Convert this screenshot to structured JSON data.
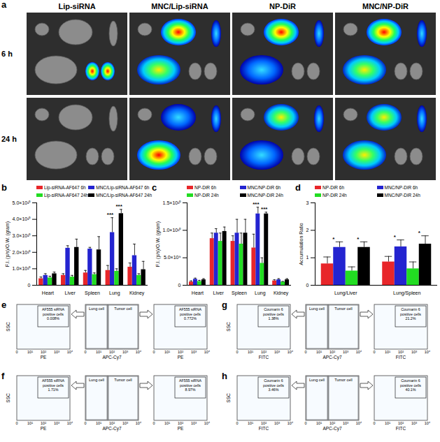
{
  "chart_data": [
    {
      "panel": "a",
      "type": "image_grid",
      "columns": [
        "Lip-siRNA",
        "MNC/Lip-siRNA",
        "NP-DiR",
        "MNC/NP-DiR"
      ],
      "rows": [
        "6 h",
        "24 h"
      ]
    },
    {
      "panel": "b",
      "type": "bar",
      "y_label": "F.I. (p/s)/O.W. (gram)",
      "legend": "top-left",
      "categories": [
        "Heart",
        "Liver",
        "Spleen",
        "Lung",
        "Kidney"
      ],
      "ylim": [
        0,
        50000000000.0
      ],
      "yticks": [
        0,
        {
          "value": 10000000000.0,
          "label": "1.0×10¹⁰"
        },
        {
          "value": 20000000000.0,
          "label": "2.0×10¹⁰"
        },
        {
          "value": 30000000000.0,
          "label": "3.0×10¹⁰"
        },
        {
          "value": 40000000000.0,
          "label": "4.0×10¹⁰"
        },
        {
          "value": 50000000000.0,
          "label": "5.0×10¹⁰"
        }
      ],
      "series": [
        {
          "name": "Lip-siRNA-AF647 6h",
          "color": "#e8262a",
          "values": [
            4000000000.0,
            6000000000.0,
            7500000000.0,
            9000000000.0,
            11000000000.0
          ],
          "errors": [
            1000000000.0,
            1000000000.0,
            1500000000.0,
            3000000000.0,
            2500000000.0
          ]
        },
        {
          "name": "MNC/Lip-siRNA-AF647 6h",
          "color": "#2424d0",
          "values": [
            6000000000.0,
            22500000000.0,
            22000000000.0,
            32000000000.0,
            18000000000.0
          ],
          "errors": [
            1000000000.0,
            1500000000.0,
            1000000000.0,
            9000000000.0,
            7000000000.0
          ]
        },
        {
          "name": "Lip-siRNA-AF647 24h",
          "color": "#22dd22",
          "values": [
            4500000000.0,
            5000000000.0,
            6500000000.0,
            8500000000.0,
            6000000000.0
          ],
          "errors": [
            1000000000.0,
            1000000000.0,
            1000000000.0,
            1500000000.0,
            1000000000.0
          ]
        },
        {
          "name": "MNC/Lip-siRNA-AF647 24h",
          "color": "#000000",
          "values": [
            7000000000.0,
            23000000000.0,
            21500000000.0,
            43500000000.0,
            9500000000.0
          ],
          "errors": [
            1000000000.0,
            5000000000.0,
            8000000000.0,
            2500000000.0,
            5000000000.0
          ]
        }
      ],
      "annotations": [
        {
          "text": "***",
          "category": "Lung",
          "between": [
            "Lip-siRNA-AF647 6h",
            "MNC/Lip-siRNA-AF647 6h"
          ]
        },
        {
          "text": "***",
          "category": "Lung",
          "between": [
            "Lip-siRNA-AF647 24h",
            "MNC/Lip-siRNA-AF647 24h"
          ]
        }
      ]
    },
    {
      "panel": "c",
      "type": "bar",
      "y_label": "F.I. (p/s)/O.W. (gram)",
      "legend": "top-left",
      "categories": [
        "Heart",
        "Liver",
        "Spleen",
        "Lung",
        "Kidney"
      ],
      "ylim": [
        0,
        15000000000.0
      ],
      "yticks": [
        0,
        {
          "value": 5000000000.0,
          "label": "5.0×10⁹"
        },
        {
          "value": 10000000000.0,
          "label": "1.0×10¹⁰"
        },
        {
          "value": 15000000000.0,
          "label": "1.5×10¹⁰"
        }
      ],
      "series": [
        {
          "name": "NP-DiR 6h",
          "color": "#e8262a",
          "values": [
            600000000.0,
            8500000000.0,
            8000000000.0,
            6800000000.0,
            800000000.0
          ],
          "errors": [
            200000000.0,
            1000000000.0,
            1000000000.0,
            2500000000.0,
            200000000.0
          ]
        },
        {
          "name": "MNC/NP-DiR 6h",
          "color": "#2424d0",
          "values": [
            1100000000.0,
            9500000000.0,
            9500000000.0,
            13000000000.0,
            1000000000.0
          ],
          "errors": [
            200000000.0,
            800000000.0,
            2500000000.0,
            1200000000.0,
            200000000.0
          ]
        },
        {
          "name": "NP-DiR 24h",
          "color": "#22dd22",
          "values": [
            700000000.0,
            8000000000.0,
            7500000000.0,
            4000000000.0,
            600000000.0
          ],
          "errors": [
            200000000.0,
            1500000000.0,
            2000000000.0,
            1000000000.0,
            100000000.0
          ]
        },
        {
          "name": "MNC/NP-DiR 24h",
          "color": "#000000",
          "values": [
            1000000000.0,
            9800000000.0,
            9500000000.0,
            13000000000.0,
            1000000000.0
          ],
          "errors": [
            200000000.0,
            800000000.0,
            2500000000.0,
            300000000.0,
            200000000.0
          ]
        }
      ],
      "annotations": [
        {
          "text": "***",
          "category": "Lung",
          "between": [
            "NP-DiR 6h",
            "MNC/NP-DiR 6h"
          ]
        },
        {
          "text": "***",
          "category": "Lung",
          "between": [
            "NP-DiR 24h",
            "MNC/NP-DiR 24h"
          ]
        }
      ]
    },
    {
      "panel": "d",
      "type": "bar",
      "y_label": "Accumulation Ratio",
      "legend": "top-left",
      "categories": [
        "Lung/Liver",
        "Lung/Spleen"
      ],
      "ylim": [
        0,
        3
      ],
      "yticks": [
        0,
        1,
        2,
        3
      ],
      "series": [
        {
          "name": "NP-DiR 6h",
          "color": "#e8262a",
          "values": [
            0.78,
            0.85
          ],
          "errors": [
            0.25,
            0.2
          ]
        },
        {
          "name": "MNC/NP-DiR 6h",
          "color": "#2424d0",
          "values": [
            1.38,
            1.4
          ],
          "errors": [
            0.2,
            0.25
          ]
        },
        {
          "name": "NP-DiR 24h",
          "color": "#22dd22",
          "values": [
            0.52,
            0.6
          ],
          "errors": [
            0.15,
            0.25
          ]
        },
        {
          "name": "MNC/NP-DiR 24h",
          "color": "#000000",
          "values": [
            1.38,
            1.5
          ],
          "errors": [
            0.2,
            0.3
          ]
        }
      ],
      "annotations": [
        {
          "text": "*",
          "category": "Lung/Liver",
          "between": [
            "NP-DiR 6h",
            "MNC/NP-DiR 6h"
          ]
        },
        {
          "text": "*",
          "category": "Lung/Liver",
          "between": [
            "NP-DiR 24h",
            "MNC/NP-DiR 24h"
          ]
        },
        {
          "text": "*",
          "category": "Lung/Spleen",
          "between": [
            "NP-DiR 6h",
            "MNC/NP-DiR 6h"
          ]
        },
        {
          "text": "*",
          "category": "Lung/Spleen",
          "between": [
            "NP-DiR 24h",
            "MNC/NP-DiR 24h"
          ]
        }
      ]
    },
    {
      "panel": "e",
      "type": "flow_cytometry",
      "y_label": "SSC",
      "tick_texts": [
        "0",
        "10¹",
        "10²",
        "10³",
        "10⁴"
      ],
      "plots": [
        {
          "x_label": "PE",
          "gate_label": "AF555 siRNA positive cells",
          "percent_label": "0.008%"
        },
        {
          "x_label": "APC-Cy7",
          "gates": [
            "Lung cell",
            "Tumor cell"
          ]
        },
        {
          "x_label": "PE",
          "gate_label": "AF555 siRNA positive cells",
          "percent_label": "0.772%"
        }
      ]
    },
    {
      "panel": "f",
      "type": "flow_cytometry",
      "y_label": "SSC",
      "tick_texts": [
        "0",
        "10¹",
        "10²",
        "10³",
        "10⁴"
      ],
      "plots": [
        {
          "x_label": "PE",
          "gate_label": "AF555 siRNA positive cells",
          "percent_label": "1.71%"
        },
        {
          "x_label": "APC-Cy7",
          "gates": [
            "Lung cell",
            "Tumor cell"
          ]
        },
        {
          "x_label": "PE",
          "gate_label": "AF555 siRNA positive cells",
          "percent_label": "8.97%"
        }
      ]
    },
    {
      "panel": "g",
      "type": "flow_cytometry",
      "y_label": "SSC",
      "tick_texts": [
        "0",
        "10¹",
        "10²",
        "10³",
        "10⁴"
      ],
      "plots": [
        {
          "x_label": "FITC",
          "gate_label": "Coumarin 6 positive cells",
          "percent_label": "1.38%"
        },
        {
          "x_label": "APC-Cy7",
          "gates": [
            "Lung cell",
            "Tumor cell"
          ]
        },
        {
          "x_label": "FITC",
          "gate_label": "Coumarin 6 positive cells",
          "percent_label": "21.2%"
        }
      ]
    },
    {
      "panel": "h",
      "type": "flow_cytometry",
      "y_label": "SSC",
      "tick_texts": [
        "0",
        "10¹",
        "10²",
        "10³",
        "10⁴"
      ],
      "plots": [
        {
          "x_label": "FITC",
          "gate_label": "Coumarin 6 positive cells",
          "percent_label": "3.46%"
        },
        {
          "x_label": "APC-Cy7",
          "gates": [
            "Lung cell",
            "Tumor cell"
          ]
        },
        {
          "x_label": "FITC",
          "gate_label": "Coumarin 6 positive cells",
          "percent_label": "40.1%"
        }
      ]
    }
  ]
}
